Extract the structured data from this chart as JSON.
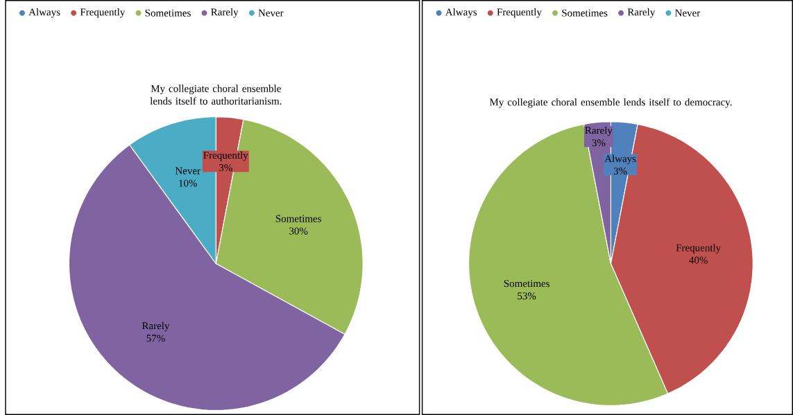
{
  "chart_data": [
    {
      "type": "pie",
      "title": "My collegiate choral ensemble lends itself to authoritarianism.",
      "legend": "top",
      "categories": [
        "Always",
        "Frequently",
        "Sometimes",
        "Rarely",
        "Never"
      ],
      "values": [
        0,
        3,
        30,
        57,
        10
      ],
      "colors": [
        "#4f81bd",
        "#c0504d",
        "#9bbb59",
        "#8064a2",
        "#4bacc6"
      ],
      "value_labels": [
        null,
        "3%",
        "30%",
        "57%",
        "10%"
      ]
    },
    {
      "type": "pie",
      "title": "My collegiate choral ensemble lends itself to democracy.",
      "legend": "top",
      "categories": [
        "Always",
        "Frequently",
        "Sometimes",
        "Rarely",
        "Never"
      ],
      "values": [
        3,
        40,
        53,
        3,
        0
      ],
      "colors": [
        "#4f81bd",
        "#c0504d",
        "#9bbb59",
        "#8064a2",
        "#4bacc6"
      ],
      "value_labels": [
        "3%",
        "40%",
        "53%",
        "3%",
        null
      ]
    }
  ]
}
